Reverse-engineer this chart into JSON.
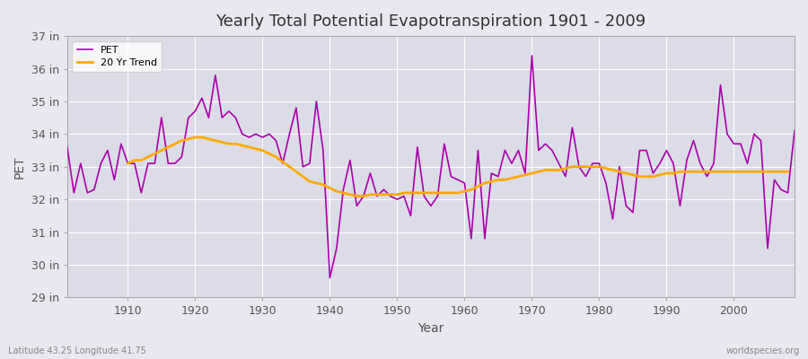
{
  "title": "Yearly Total Potential Evapotranspiration 1901 - 2009",
  "xlabel": "Year",
  "ylabel": "PET",
  "subtitle_left": "Latitude 43.25 Longitude 41.75",
  "subtitle_right": "worldspecies.org",
  "pet_color": "#aa00aa",
  "trend_color": "#ffaa00",
  "background_color": "#e8e8f0",
  "plot_bg_color": "#dcdce8",
  "grid_color": "#ffffff",
  "ylim_bottom": 29,
  "ylim_top": 37,
  "xlim_left": 1901,
  "xlim_right": 2009,
  "ytick_labels": [
    "29 in",
    "30 in",
    "31 in",
    "32 in",
    "33 in",
    "34 in",
    "35 in",
    "36 in",
    "37 in"
  ],
  "ytick_values": [
    29,
    30,
    31,
    32,
    33,
    34,
    35,
    36,
    37
  ],
  "years": [
    1901,
    1902,
    1903,
    1904,
    1905,
    1906,
    1907,
    1908,
    1909,
    1910,
    1911,
    1912,
    1913,
    1914,
    1915,
    1916,
    1917,
    1918,
    1919,
    1920,
    1921,
    1922,
    1923,
    1924,
    1925,
    1926,
    1927,
    1928,
    1929,
    1930,
    1931,
    1932,
    1933,
    1934,
    1935,
    1936,
    1937,
    1938,
    1939,
    1940,
    1941,
    1942,
    1943,
    1944,
    1945,
    1946,
    1947,
    1948,
    1949,
    1950,
    1951,
    1952,
    1953,
    1954,
    1955,
    1956,
    1957,
    1958,
    1959,
    1960,
    1961,
    1962,
    1963,
    1964,
    1965,
    1966,
    1967,
    1968,
    1969,
    1970,
    1971,
    1972,
    1973,
    1974,
    1975,
    1976,
    1977,
    1978,
    1979,
    1980,
    1981,
    1982,
    1983,
    1984,
    1985,
    1986,
    1987,
    1988,
    1989,
    1990,
    1991,
    1992,
    1993,
    1994,
    1995,
    1996,
    1997,
    1998,
    1999,
    2000,
    2001,
    2002,
    2003,
    2004,
    2005,
    2006,
    2007,
    2008,
    2009
  ],
  "pet_values": [
    33.6,
    32.2,
    33.1,
    32.2,
    32.3,
    33.1,
    33.5,
    32.6,
    33.7,
    33.1,
    33.1,
    32.2,
    33.1,
    33.1,
    34.5,
    33.1,
    33.1,
    33.3,
    34.5,
    34.7,
    35.1,
    34.5,
    35.8,
    34.5,
    34.7,
    34.5,
    34.0,
    33.9,
    34.0,
    33.9,
    34.0,
    33.8,
    33.1,
    34.0,
    34.8,
    33.0,
    33.1,
    35.0,
    33.5,
    29.6,
    30.5,
    32.3,
    33.2,
    31.8,
    32.1,
    32.8,
    32.1,
    32.3,
    32.1,
    32.0,
    32.1,
    31.5,
    33.6,
    32.1,
    31.8,
    32.1,
    33.7,
    32.7,
    32.6,
    32.5,
    30.8,
    33.5,
    30.8,
    32.8,
    32.7,
    33.5,
    33.1,
    33.5,
    32.8,
    36.4,
    33.5,
    33.7,
    33.5,
    33.1,
    32.7,
    34.2,
    33.0,
    32.7,
    33.1,
    33.1,
    32.5,
    31.4,
    33.0,
    31.8,
    31.6,
    33.5,
    33.5,
    32.8,
    33.1,
    33.5,
    33.1,
    31.8,
    33.2,
    33.8,
    33.1,
    32.7,
    33.1,
    35.5,
    34.0,
    33.7,
    33.7,
    33.1,
    34.0,
    33.8,
    30.5,
    32.6,
    32.3,
    32.2,
    34.1
  ],
  "trend_values": [
    null,
    null,
    null,
    null,
    null,
    null,
    null,
    null,
    null,
    33.1,
    33.2,
    33.2,
    33.3,
    33.4,
    33.5,
    33.6,
    33.7,
    33.8,
    33.85,
    33.9,
    33.9,
    33.85,
    33.8,
    33.75,
    33.7,
    33.7,
    33.65,
    33.6,
    33.55,
    33.5,
    33.4,
    33.3,
    33.15,
    33.0,
    32.85,
    32.7,
    32.55,
    32.5,
    32.45,
    32.35,
    32.25,
    32.2,
    32.15,
    32.1,
    32.1,
    32.15,
    32.15,
    32.15,
    32.15,
    32.15,
    32.2,
    32.2,
    32.2,
    32.2,
    32.2,
    32.2,
    32.2,
    32.2,
    32.2,
    32.25,
    32.3,
    32.4,
    32.5,
    32.55,
    32.6,
    32.6,
    32.65,
    32.7,
    32.75,
    32.8,
    32.85,
    32.9,
    32.9,
    32.9,
    32.95,
    33.0,
    33.0,
    33.0,
    33.0,
    33.0,
    32.95,
    32.9,
    32.85,
    32.8,
    32.75,
    32.7,
    32.7,
    32.7,
    32.75,
    32.8,
    32.8,
    32.85,
    32.85,
    32.85,
    32.85,
    32.85,
    32.85,
    32.85,
    32.85,
    32.85,
    32.85,
    32.85,
    32.85,
    32.85,
    32.85,
    32.85,
    32.85,
    32.85
  ]
}
